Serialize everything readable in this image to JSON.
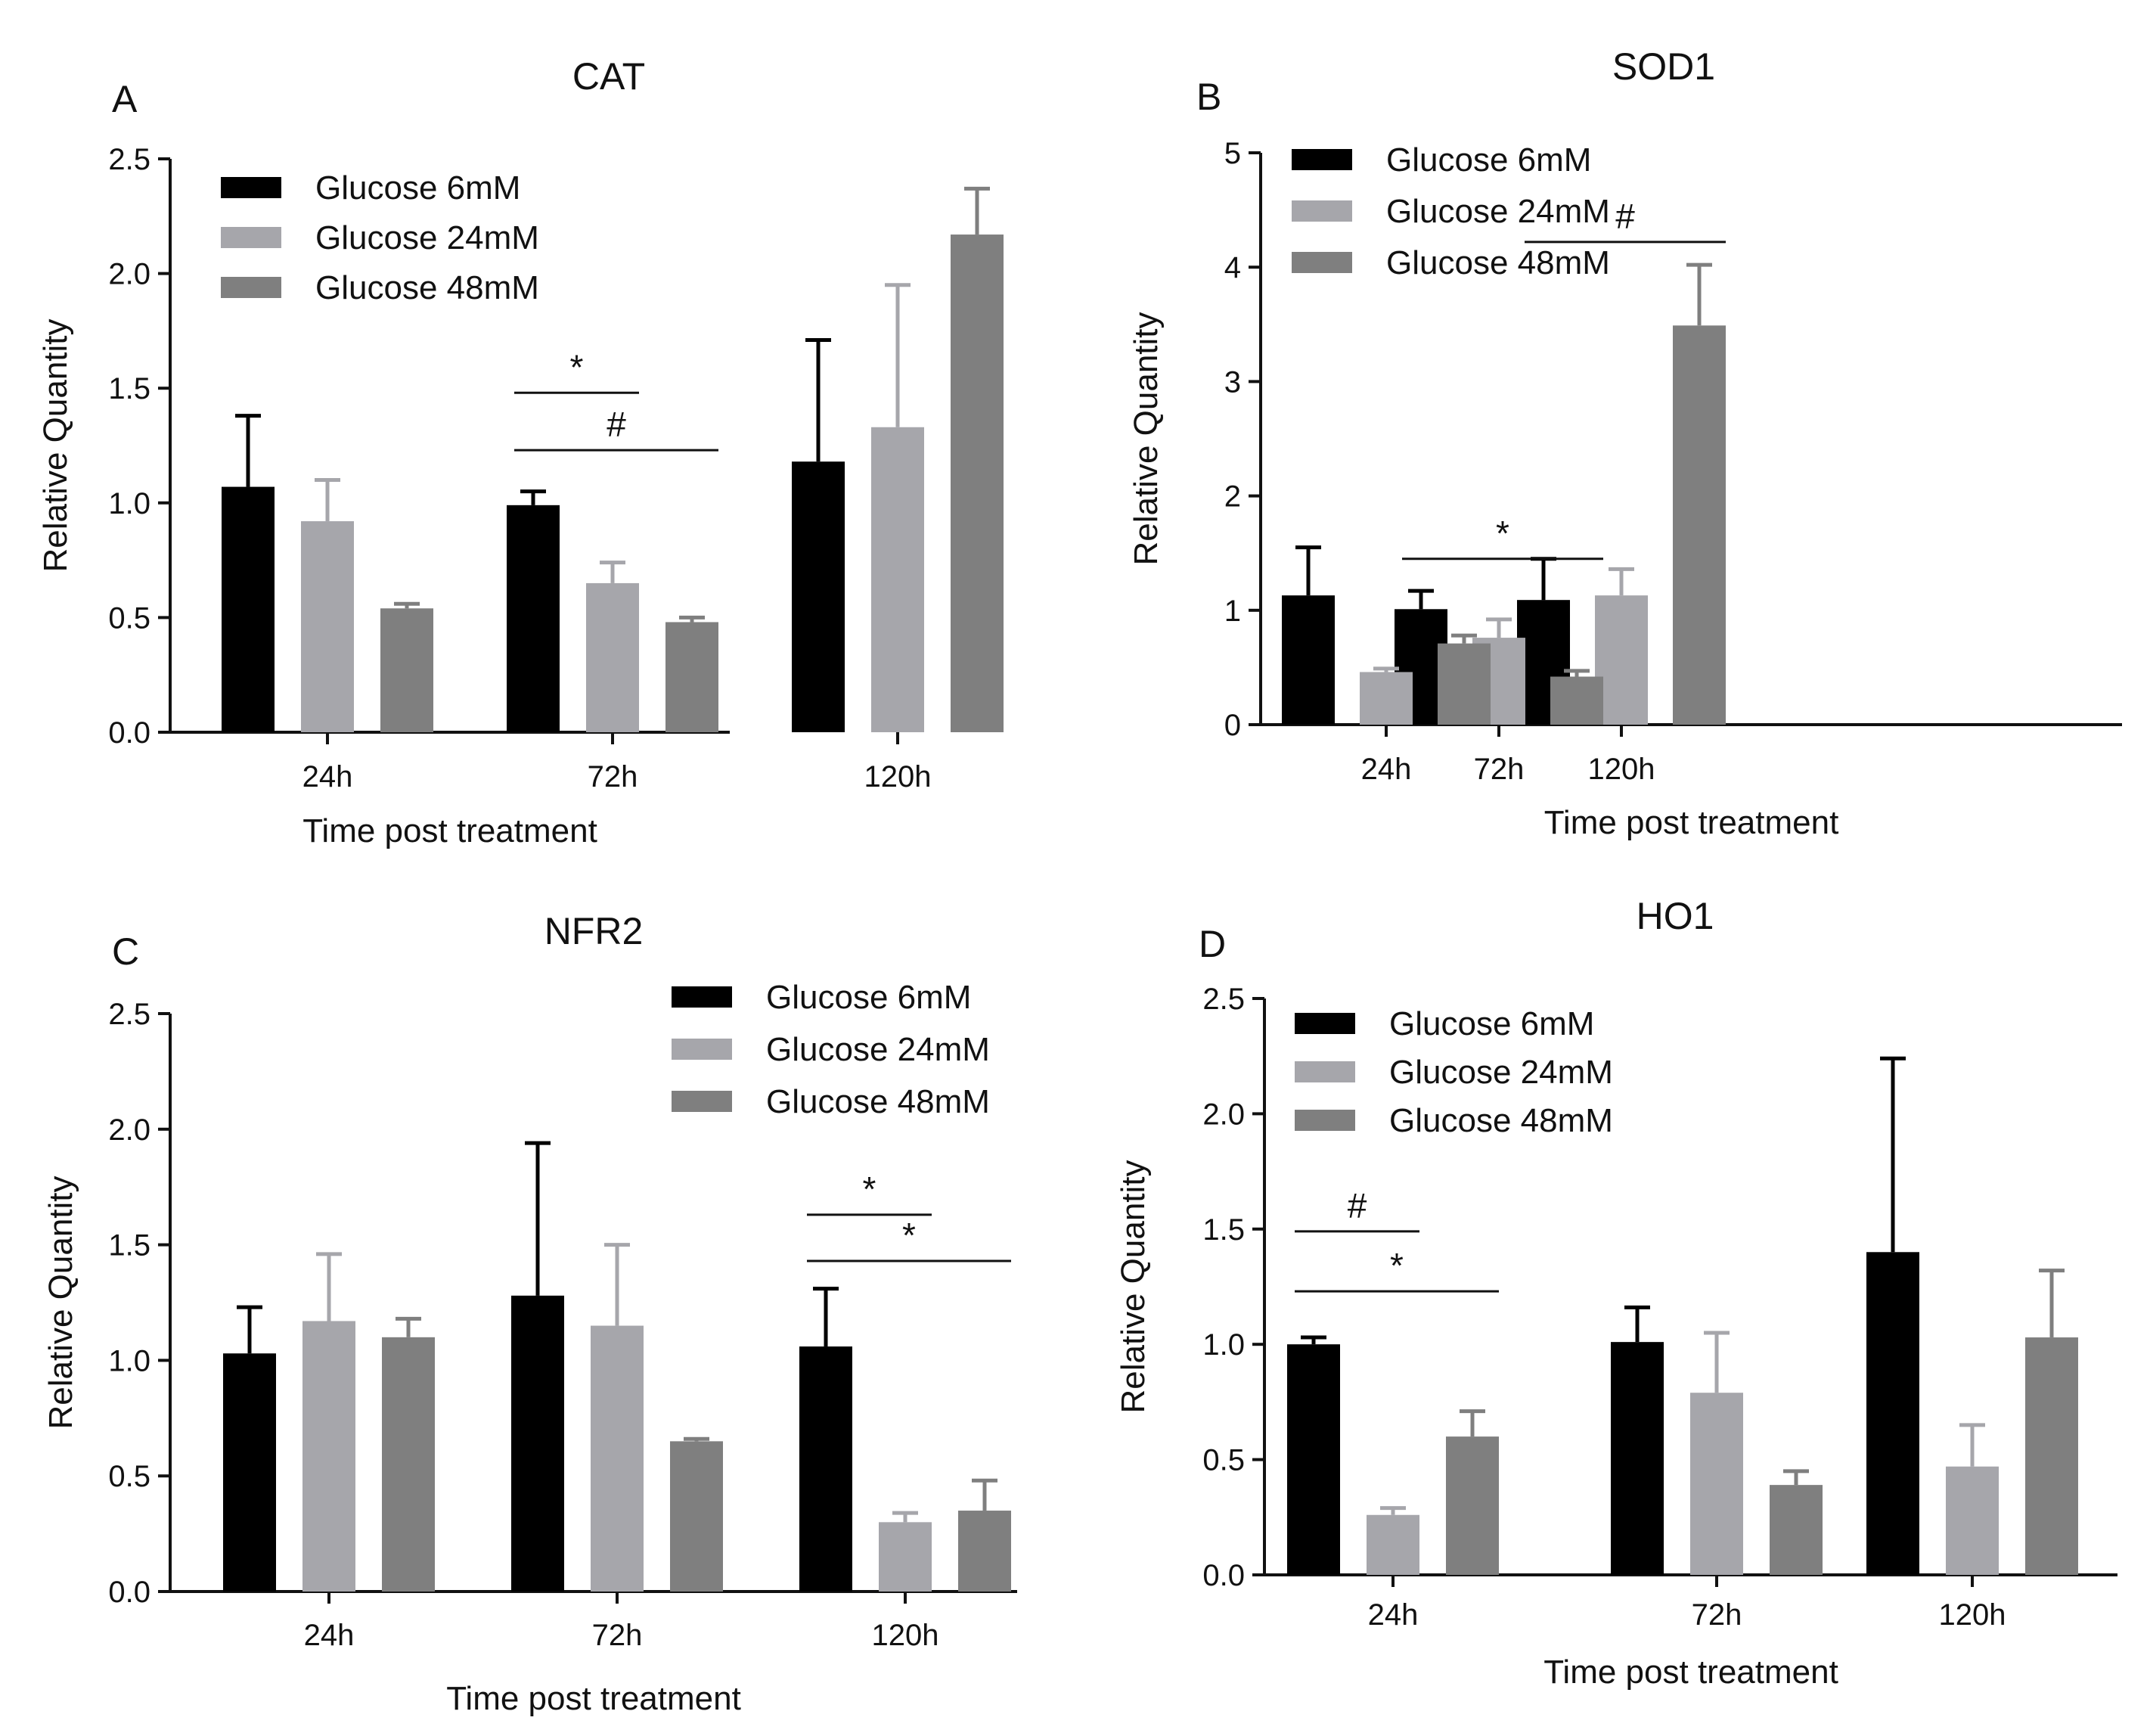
{
  "legend": {
    "series_names": [
      "Glucose 6mM",
      "Glucose 24mM",
      "Glucose 48mM"
    ],
    "series_colors": [
      "#000000",
      "#a6a6ab",
      "#7f7f7f"
    ]
  },
  "chart_data": [
    {
      "type": "bar",
      "panel": "A",
      "title": "CAT",
      "xlabel": "Time post treatment",
      "ylabel": "Relative Quantity",
      "categories": [
        "24h",
        "72h",
        "120h"
      ],
      "ylim": [
        0,
        2.5
      ],
      "yticks": [
        "0.0",
        "0.5",
        "1.0",
        "1.5",
        "2.0",
        "2.5"
      ],
      "legend_position": "top-left",
      "series": [
        {
          "name": "Glucose 6mM",
          "values": [
            1.07,
            0.99,
            1.18
          ],
          "errors": [
            0.31,
            0.06,
            0.53
          ]
        },
        {
          "name": "Glucose 24mM",
          "values": [
            0.92,
            0.65,
            1.33
          ],
          "errors": [
            0.18,
            0.09,
            0.62
          ]
        },
        {
          "name": "Glucose 48mM",
          "values": [
            0.54,
            0.48,
            2.17
          ],
          "errors": [
            0.02,
            0.02,
            0.2
          ]
        }
      ],
      "annotations": [
        {
          "label": "*",
          "category": "72h",
          "from_series": 0,
          "to_series": 1,
          "y": 1.48
        },
        {
          "label": "#",
          "category": "72h",
          "from_series": 0,
          "to_series": 2,
          "y": 1.23
        }
      ]
    },
    {
      "type": "bar",
      "panel": "B",
      "title": "SOD1",
      "xlabel": "Time post treatment",
      "ylabel": "Relative Quantity",
      "categories": [
        "24h",
        "72h",
        "120h"
      ],
      "ylim": [
        0,
        5
      ],
      "yticks": [
        "0",
        "1",
        "2",
        "3",
        "4",
        "5"
      ],
      "legend_position": "top-left",
      "series": [
        {
          "name": "Glucose 6mM",
          "values": [
            1.13,
            1.01,
            1.09
          ],
          "errors": [
            0.42,
            0.16,
            0.36
          ]
        },
        {
          "name": "Glucose 24mM",
          "values": [
            0.46,
            0.76,
            1.13
          ],
          "errors": [
            0.03,
            0.16,
            0.23
          ]
        },
        {
          "name": "Glucose 48mM",
          "values": [
            0.71,
            0.42,
            3.49
          ],
          "errors": [
            0.07,
            0.05,
            0.53
          ]
        }
      ],
      "annotations": [
        {
          "label": "*",
          "category": "72h",
          "from_series": 0,
          "to_series": 2,
          "y": 1.45
        },
        {
          "label": "#",
          "category": "120h",
          "from_series": 0,
          "to_series": 2,
          "y": 4.22
        }
      ]
    },
    {
      "type": "bar",
      "panel": "C",
      "title": "NFR2",
      "xlabel": "Time post treatment",
      "ylabel": "Relative Quantity",
      "categories": [
        "24h",
        "72h",
        "120h"
      ],
      "ylim": [
        0,
        2.5
      ],
      "yticks": [
        "0.0",
        "0.5",
        "1.0",
        "1.5",
        "2.0",
        "2.5"
      ],
      "legend_position": "top-right",
      "series": [
        {
          "name": "Glucose 6mM",
          "values": [
            1.03,
            1.28,
            1.06
          ],
          "errors": [
            0.2,
            0.66,
            0.25
          ]
        },
        {
          "name": "Glucose 24mM",
          "values": [
            1.17,
            1.15,
            0.3
          ],
          "errors": [
            0.29,
            0.35,
            0.04
          ]
        },
        {
          "name": "Glucose 48mM",
          "values": [
            1.1,
            0.65,
            0.35
          ],
          "errors": [
            0.08,
            0.01,
            0.13
          ]
        }
      ],
      "annotations": [
        {
          "label": "*",
          "category": "120h",
          "from_series": 0,
          "to_series": 1,
          "y": 1.63
        },
        {
          "label": "*",
          "category": "120h",
          "from_series": 0,
          "to_series": 2,
          "y": 1.43
        }
      ]
    },
    {
      "type": "bar",
      "panel": "D",
      "title": "HO1",
      "xlabel": "Time post treatment",
      "ylabel": "Relative Quantity",
      "categories": [
        "24h",
        "72h",
        "120h"
      ],
      "ylim": [
        0,
        2.5
      ],
      "yticks": [
        "0.0",
        "0.5",
        "1.0",
        "1.5",
        "2.0",
        "2.5"
      ],
      "legend_position": "top-left",
      "series": [
        {
          "name": "Glucose 6mM",
          "values": [
            1.0,
            1.01,
            1.4
          ],
          "errors": [
            0.03,
            0.15,
            0.84
          ]
        },
        {
          "name": "Glucose 24mM",
          "values": [
            0.26,
            0.79,
            0.47
          ],
          "errors": [
            0.03,
            0.26,
            0.18
          ]
        },
        {
          "name": "Glucose 48mM",
          "values": [
            0.6,
            0.39,
            1.03
          ],
          "errors": [
            0.11,
            0.06,
            0.29
          ]
        }
      ],
      "annotations": [
        {
          "label": "#",
          "category": "24h",
          "from_series": 0,
          "to_series": 1,
          "y": 1.49
        },
        {
          "label": "*",
          "category": "24h",
          "from_series": 0,
          "to_series": 2,
          "y": 1.23
        }
      ]
    }
  ]
}
